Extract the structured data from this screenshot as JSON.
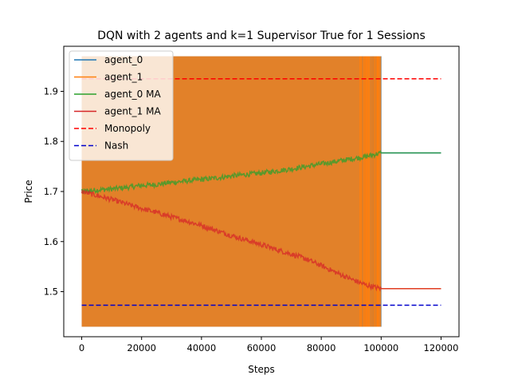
{
  "chart_data": {
    "type": "line",
    "title": "DQN with 2 agents and k=1 Supervisor True for 1 Sessions",
    "xlabel": "Steps",
    "ylabel": "Price",
    "xlim": [
      -6000,
      126000
    ],
    "ylim": [
      1.41,
      1.99
    ],
    "x_ticks": [
      0,
      20000,
      40000,
      60000,
      80000,
      100000,
      120000
    ],
    "x_tick_labels": [
      "0",
      "20000",
      "40000",
      "60000",
      "80000",
      "100000",
      "120000"
    ],
    "y_ticks": [
      1.5,
      1.6,
      1.7,
      1.8,
      1.9
    ],
    "y_tick_labels": [
      "1.5",
      "1.6",
      "1.7",
      "1.8",
      "1.9"
    ],
    "grid": false,
    "legend_position": "upper-left",
    "series": [
      {
        "name": "agent_0",
        "color": "#1f77b4",
        "style": "oscillating-band",
        "price_range": [
          1.43,
          1.97
        ],
        "oscillation_until_step": 100000,
        "x": [
          100000,
          120000
        ],
        "y": [
          1.777,
          1.777
        ]
      },
      {
        "name": "agent_1",
        "color": "#ff7f0e",
        "style": "oscillating-band",
        "price_range": [
          1.43,
          1.97
        ],
        "oscillation_until_step": 100000,
        "x": [
          100000,
          120000
        ],
        "y": [
          1.506,
          1.506
        ]
      },
      {
        "name": "agent_0 MA",
        "color": "#2ca02c",
        "style": "solid",
        "x": [
          0,
          5000,
          10000,
          15000,
          20000,
          25000,
          30000,
          35000,
          40000,
          45000,
          50000,
          55000,
          60000,
          65000,
          70000,
          75000,
          80000,
          85000,
          90000,
          95000,
          100000,
          120000
        ],
        "y": [
          1.7,
          1.703,
          1.705,
          1.708,
          1.712,
          1.714,
          1.718,
          1.721,
          1.724,
          1.727,
          1.731,
          1.734,
          1.737,
          1.741,
          1.745,
          1.75,
          1.755,
          1.76,
          1.765,
          1.77,
          1.777,
          1.777
        ]
      },
      {
        "name": "agent_1 MA",
        "color": "#d62728",
        "style": "solid",
        "x": [
          0,
          5000,
          10000,
          15000,
          20000,
          25000,
          30000,
          35000,
          40000,
          45000,
          50000,
          55000,
          60000,
          65000,
          70000,
          75000,
          80000,
          85000,
          90000,
          95000,
          100000,
          120000
        ],
        "y": [
          1.7,
          1.692,
          1.684,
          1.675,
          1.666,
          1.658,
          1.649,
          1.641,
          1.632,
          1.622,
          1.612,
          1.603,
          1.594,
          1.584,
          1.575,
          1.565,
          1.552,
          1.538,
          1.525,
          1.513,
          1.506,
          1.506
        ]
      },
      {
        "name": "Monopoly",
        "color": "#ff0000",
        "style": "dashed",
        "x": [
          0,
          120000
        ],
        "y": [
          1.925,
          1.925
        ]
      },
      {
        "name": "Nash",
        "color": "#0000cc",
        "style": "dashed",
        "x": [
          0,
          120000
        ],
        "y": [
          1.473,
          1.473
        ]
      }
    ]
  }
}
